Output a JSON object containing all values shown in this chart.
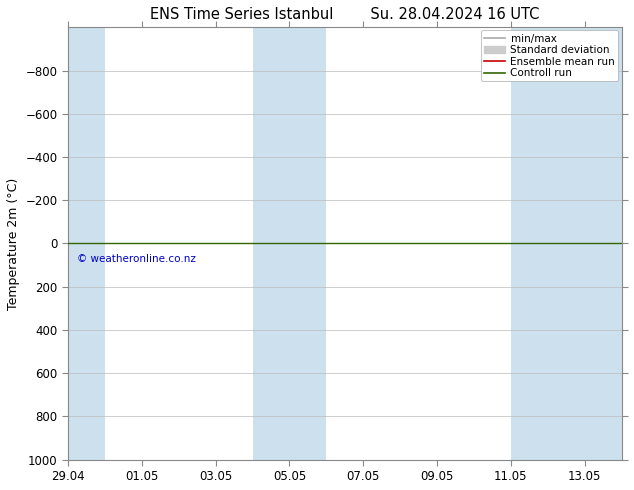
{
  "title_left": "ENS Time Series Istanbul",
  "title_right": "Su. 28.04.2024 16 UTC",
  "ylabel": "Temperature 2m (°C)",
  "ylim": [
    1000,
    -1000
  ],
  "yticks": [
    -800,
    -600,
    -400,
    -200,
    0,
    200,
    400,
    600,
    800,
    1000
  ],
  "x_start": "2024-04-29",
  "x_end": "2024-05-14",
  "x_tick_dates": [
    "2024-04-29",
    "2024-05-01",
    "2024-05-03",
    "2024-05-05",
    "2024-05-07",
    "2024-05-09",
    "2024-05-11",
    "2024-05-13"
  ],
  "x_tick_labels": [
    "29.04",
    "01.05",
    "03.05",
    "05.05",
    "07.05",
    "09.05",
    "11.05",
    "13.05"
  ],
  "blue_bands": [
    [
      "2024-04-29",
      "2024-04-30"
    ],
    [
      "2024-05-04",
      "2024-05-06"
    ],
    [
      "2024-05-11",
      "2024-05-14"
    ]
  ],
  "green_line_y": 0,
  "copyright_text": "© weatheronline.co.nz",
  "copyright_color": "#0000cc",
  "background_color": "#ffffff",
  "plot_bg_color": "#ffffff",
  "band_color": "#cce0ee",
  "grid_color": "#bbbbbb",
  "green_line_color": "#336600",
  "legend_items": [
    {
      "label": "min/max",
      "color": "#aaaaaa",
      "lw": 1.2
    },
    {
      "label": "Standard deviation",
      "color": "#cccccc",
      "lw": 6
    },
    {
      "label": "Ensemble mean run",
      "color": "#cc0000",
      "lw": 1.2
    },
    {
      "label": "Controll run",
      "color": "#336600",
      "lw": 1.2
    }
  ],
  "title_fontsize": 10.5,
  "axis_label_fontsize": 9,
  "tick_fontsize": 8.5,
  "legend_fontsize": 7.5
}
